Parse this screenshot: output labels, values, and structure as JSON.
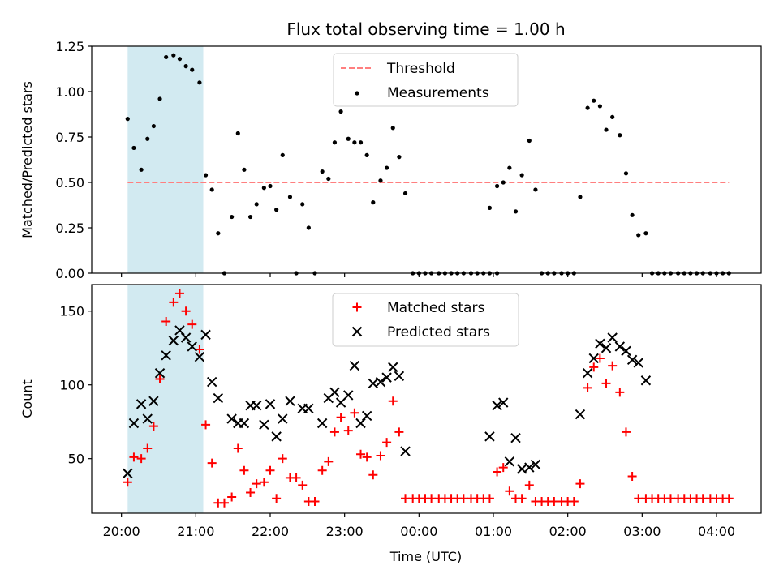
{
  "chart_data": [
    {
      "type": "scatter",
      "title": "Flux total observing time = 1.00 h",
      "xlabel": "",
      "ylabel": "Matched/Predicted stars",
      "ylim": [
        0,
        1.25
      ],
      "yticks": [
        "0.00",
        "0.25",
        "0.50",
        "0.75",
        "1.00",
        "1.25"
      ],
      "shaded_span": [
        "20:05",
        "21:06"
      ],
      "shaded_color": "#add8e6",
      "legend_position": "top-center",
      "threshold": {
        "name": "Threshold",
        "y": 0.5,
        "x_start": "20:05",
        "x_end": "04:10",
        "color": "#ff7f7f",
        "style": "dashed"
      },
      "series": [
        {
          "name": "Measurements",
          "color": "#000000",
          "marker": "dot",
          "points": [
            [
              "20:05",
              0.85
            ],
            [
              "20:10",
              0.69
            ],
            [
              "20:16",
              0.57
            ],
            [
              "20:21",
              0.74
            ],
            [
              "20:26",
              0.81
            ],
            [
              "20:31",
              0.96
            ],
            [
              "20:36",
              1.19
            ],
            [
              "20:42",
              1.2
            ],
            [
              "20:47",
              1.18
            ],
            [
              "20:52",
              1.14
            ],
            [
              "20:57",
              1.12
            ],
            [
              "21:03",
              1.05
            ],
            [
              "21:08",
              0.54
            ],
            [
              "21:13",
              0.46
            ],
            [
              "21:18",
              0.22
            ],
            [
              "21:23",
              0.0
            ],
            [
              "21:29",
              0.31
            ],
            [
              "21:34",
              0.77
            ],
            [
              "21:39",
              0.57
            ],
            [
              "21:44",
              0.31
            ],
            [
              "21:49",
              0.38
            ],
            [
              "21:55",
              0.47
            ],
            [
              "22:00",
              0.48
            ],
            [
              "22:05",
              0.35
            ],
            [
              "22:10",
              0.65
            ],
            [
              "22:16",
              0.42
            ],
            [
              "22:21",
              0.0
            ],
            [
              "22:26",
              0.38
            ],
            [
              "22:31",
              0.25
            ],
            [
              "22:36",
              0.0
            ],
            [
              "22:42",
              0.56
            ],
            [
              "22:47",
              0.52
            ],
            [
              "22:52",
              0.72
            ],
            [
              "22:57",
              0.89
            ],
            [
              "23:03",
              0.74
            ],
            [
              "23:08",
              0.72
            ],
            [
              "23:13",
              0.72
            ],
            [
              "23:18",
              0.65
            ],
            [
              "23:23",
              0.39
            ],
            [
              "23:29",
              0.51
            ],
            [
              "23:34",
              0.58
            ],
            [
              "23:39",
              0.8
            ],
            [
              "23:44",
              0.64
            ],
            [
              "23:49",
              0.44
            ],
            [
              "23:55",
              0.0
            ],
            [
              "00:00",
              0.0
            ],
            [
              "00:05",
              0.0
            ],
            [
              "00:10",
              0.0
            ],
            [
              "00:16",
              0.0
            ],
            [
              "00:21",
              0.0
            ],
            [
              "00:26",
              0.0
            ],
            [
              "00:31",
              0.0
            ],
            [
              "00:36",
              0.0
            ],
            [
              "00:42",
              0.0
            ],
            [
              "00:47",
              0.0
            ],
            [
              "00:52",
              0.0
            ],
            [
              "00:57",
              0.0
            ],
            [
              "01:03",
              0.0
            ],
            [
              "00:57",
              0.36
            ],
            [
              "01:03",
              0.48
            ],
            [
              "01:08",
              0.5
            ],
            [
              "01:13",
              0.58
            ],
            [
              "01:18",
              0.34
            ],
            [
              "01:23",
              0.54
            ],
            [
              "01:29",
              0.73
            ],
            [
              "01:34",
              0.46
            ],
            [
              "01:39",
              0.0
            ],
            [
              "01:44",
              0.0
            ],
            [
              "01:49",
              0.0
            ],
            [
              "01:55",
              0.0
            ],
            [
              "02:00",
              0.0
            ],
            [
              "02:05",
              0.0
            ],
            [
              "02:10",
              0.42
            ],
            [
              "02:16",
              0.91
            ],
            [
              "02:21",
              0.95
            ],
            [
              "02:26",
              0.92
            ],
            [
              "02:31",
              0.79
            ],
            [
              "02:36",
              0.86
            ],
            [
              "02:42",
              0.76
            ],
            [
              "02:47",
              0.55
            ],
            [
              "02:52",
              0.32
            ],
            [
              "02:57",
              0.21
            ],
            [
              "03:03",
              0.22
            ],
            [
              "03:08",
              0.0
            ],
            [
              "03:13",
              0.0
            ],
            [
              "03:18",
              0.0
            ],
            [
              "03:23",
              0.0
            ],
            [
              "03:29",
              0.0
            ],
            [
              "03:34",
              0.0
            ],
            [
              "03:39",
              0.0
            ],
            [
              "03:44",
              0.0
            ],
            [
              "03:49",
              0.0
            ],
            [
              "03:55",
              0.0
            ],
            [
              "04:00",
              0.0
            ],
            [
              "04:05",
              0.0
            ],
            [
              "04:10",
              0.0
            ]
          ]
        }
      ]
    },
    {
      "type": "scatter",
      "title": "",
      "xlabel": "Time (UTC)",
      "ylabel": "Count",
      "ylim": [
        13,
        168
      ],
      "yticks": [
        "50",
        "100",
        "150"
      ],
      "xticks": [
        "20:00",
        "21:00",
        "22:00",
        "23:00",
        "00:00",
        "01:00",
        "02:00",
        "03:00",
        "04:00"
      ],
      "shaded_span": [
        "20:05",
        "21:06"
      ],
      "shaded_color": "#add8e6",
      "legend_position": "top-center",
      "series": [
        {
          "name": "Matched stars",
          "color": "#ff0000",
          "marker": "plus",
          "points": [
            [
              "20:05",
              34
            ],
            [
              "20:10",
              51
            ],
            [
              "20:16",
              50
            ],
            [
              "20:21",
              57
            ],
            [
              "20:26",
              72
            ],
            [
              "20:31",
              104
            ],
            [
              "20:36",
              143
            ],
            [
              "20:42",
              156
            ],
            [
              "20:47",
              162
            ],
            [
              "20:52",
              150
            ],
            [
              "20:57",
              141
            ],
            [
              "21:03",
              124
            ],
            [
              "21:08",
              73
            ],
            [
              "21:13",
              47
            ],
            [
              "21:18",
              20
            ],
            [
              "21:23",
              20
            ],
            [
              "21:29",
              24
            ],
            [
              "21:34",
              57
            ],
            [
              "21:39",
              42
            ],
            [
              "21:44",
              27
            ],
            [
              "21:49",
              33
            ],
            [
              "21:55",
              34
            ],
            [
              "22:00",
              42
            ],
            [
              "22:05",
              23
            ],
            [
              "22:10",
              50
            ],
            [
              "22:16",
              37
            ],
            [
              "22:21",
              37
            ],
            [
              "22:26",
              32
            ],
            [
              "22:31",
              21
            ],
            [
              "22:36",
              21
            ],
            [
              "22:42",
              42
            ],
            [
              "22:47",
              48
            ],
            [
              "22:52",
              68
            ],
            [
              "22:57",
              78
            ],
            [
              "23:03",
              69
            ],
            [
              "23:08",
              81
            ],
            [
              "23:13",
              53
            ],
            [
              "23:18",
              51
            ],
            [
              "23:23",
              39
            ],
            [
              "23:29",
              52
            ],
            [
              "23:34",
              61
            ],
            [
              "23:39",
              89
            ],
            [
              "23:44",
              68
            ],
            [
              "23:49",
              23
            ],
            [
              "23:55",
              23
            ],
            [
              "00:00",
              23
            ],
            [
              "00:05",
              23
            ],
            [
              "00:10",
              23
            ],
            [
              "00:16",
              23
            ],
            [
              "00:21",
              23
            ],
            [
              "00:26",
              23
            ],
            [
              "00:31",
              23
            ],
            [
              "00:36",
              23
            ],
            [
              "00:42",
              23
            ],
            [
              "00:47",
              23
            ],
            [
              "00:52",
              23
            ],
            [
              "00:57",
              23
            ],
            [
              "01:03",
              41
            ],
            [
              "01:08",
              44
            ],
            [
              "01:13",
              28
            ],
            [
              "01:18",
              23
            ],
            [
              "01:23",
              23
            ],
            [
              "01:29",
              32
            ],
            [
              "01:34",
              21
            ],
            [
              "01:39",
              21
            ],
            [
              "01:44",
              21
            ],
            [
              "01:49",
              21
            ],
            [
              "01:55",
              21
            ],
            [
              "02:00",
              21
            ],
            [
              "02:05",
              21
            ],
            [
              "02:10",
              33
            ],
            [
              "02:16",
              98
            ],
            [
              "02:21",
              112
            ],
            [
              "02:26",
              118
            ],
            [
              "02:31",
              101
            ],
            [
              "02:36",
              113
            ],
            [
              "02:42",
              95
            ],
            [
              "02:47",
              68
            ],
            [
              "02:52",
              38
            ],
            [
              "02:57",
              23
            ],
            [
              "03:03",
              23
            ],
            [
              "03:08",
              23
            ],
            [
              "03:13",
              23
            ],
            [
              "03:18",
              23
            ],
            [
              "03:23",
              23
            ],
            [
              "03:29",
              23
            ],
            [
              "03:34",
              23
            ],
            [
              "03:39",
              23
            ],
            [
              "03:44",
              23
            ],
            [
              "03:49",
              23
            ],
            [
              "03:55",
              23
            ],
            [
              "04:00",
              23
            ],
            [
              "04:05",
              23
            ],
            [
              "04:10",
              23
            ]
          ]
        },
        {
          "name": "Predicted stars",
          "color": "#000000",
          "marker": "x",
          "points": [
            [
              "20:05",
              40
            ],
            [
              "20:10",
              74
            ],
            [
              "20:16",
              87
            ],
            [
              "20:21",
              77
            ],
            [
              "20:26",
              89
            ],
            [
              "20:31",
              108
            ],
            [
              "20:36",
              120
            ],
            [
              "20:42",
              130
            ],
            [
              "20:47",
              137
            ],
            [
              "20:52",
              132
            ],
            [
              "20:57",
              126
            ],
            [
              "21:03",
              119
            ],
            [
              "21:08",
              134
            ],
            [
              "21:13",
              102
            ],
            [
              "21:18",
              91
            ],
            [
              "21:29",
              77
            ],
            [
              "21:34",
              74
            ],
            [
              "21:39",
              74
            ],
            [
              "21:44",
              86
            ],
            [
              "21:49",
              86
            ],
            [
              "21:55",
              73
            ],
            [
              "22:00",
              87
            ],
            [
              "22:05",
              65
            ],
            [
              "22:10",
              77
            ],
            [
              "22:16",
              89
            ],
            [
              "22:26",
              84
            ],
            [
              "22:31",
              84
            ],
            [
              "22:42",
              74
            ],
            [
              "22:47",
              91
            ],
            [
              "22:52",
              95
            ],
            [
              "22:57",
              88
            ],
            [
              "23:03",
              93
            ],
            [
              "23:08",
              113
            ],
            [
              "23:13",
              74
            ],
            [
              "23:18",
              79
            ],
            [
              "23:23",
              101
            ],
            [
              "23:29",
              102
            ],
            [
              "23:34",
              105
            ],
            [
              "23:39",
              112
            ],
            [
              "23:44",
              106
            ],
            [
              "23:49",
              55
            ],
            [
              "00:57",
              65
            ],
            [
              "01:03",
              86
            ],
            [
              "01:08",
              88
            ],
            [
              "01:13",
              48
            ],
            [
              "01:18",
              64
            ],
            [
              "01:23",
              43
            ],
            [
              "01:29",
              44
            ],
            [
              "01:34",
              46
            ],
            [
              "02:10",
              80
            ],
            [
              "02:16",
              108
            ],
            [
              "02:21",
              118
            ],
            [
              "02:26",
              128
            ],
            [
              "02:31",
              125
            ],
            [
              "02:36",
              132
            ],
            [
              "02:42",
              126
            ],
            [
              "02:47",
              123
            ],
            [
              "02:52",
              117
            ],
            [
              "02:57",
              115
            ],
            [
              "03:03",
              103
            ]
          ]
        }
      ]
    }
  ]
}
